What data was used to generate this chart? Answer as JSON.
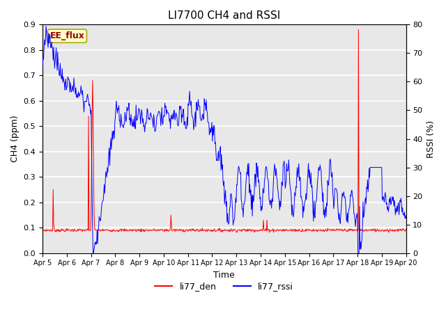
{
  "title": "LI7700 CH4 and RSSI",
  "xlabel": "Time",
  "ylabel_left": "CH4 (ppm)",
  "ylabel_right": "RSSI (%)",
  "ylim_left": [
    0.0,
    0.9
  ],
  "ylim_right": [
    0,
    80
  ],
  "yticks_left": [
    0.0,
    0.1,
    0.2,
    0.3,
    0.4,
    0.5,
    0.6,
    0.7,
    0.8,
    0.9
  ],
  "yticks_right": [
    0,
    10,
    20,
    30,
    40,
    50,
    60,
    70,
    80
  ],
  "plot_bg_color": "#e8e8e8",
  "title_fontsize": 11,
  "label_fontsize": 9,
  "tick_fontsize": 8,
  "legend_labels": [
    "li77_den",
    "li77_rssi"
  ],
  "site_label": "EE_flux",
  "site_label_bg": "#ffffcc",
  "site_label_border": "#aaaa00",
  "site_label_color": "#990000",
  "xtick_labels": [
    "Apr 5",
    "Apr 6",
    "Apr 7",
    "Apr 8",
    "Apr 9",
    "Apr 10",
    "Apr 11",
    "Apr 12",
    "Apr 13",
    "Apr 14",
    "Apr 15",
    "Apr 16",
    "Apr 17",
    "Apr 18",
    "Apr 19",
    "Apr 20"
  ]
}
